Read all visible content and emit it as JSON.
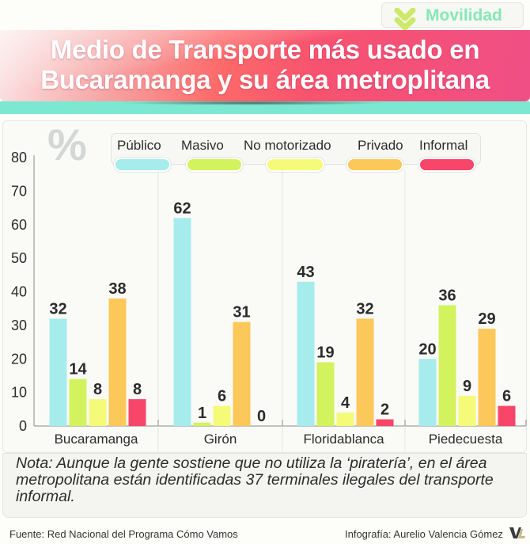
{
  "badge": {
    "label": "Movilidad",
    "icon": "double-chevron-down-icon",
    "accent": "#86e8b8",
    "chevron_color": "#cde86a"
  },
  "header": {
    "title_line1": "Medio de Transporte más usado en",
    "title_line2": "Bucaramanga y su área metroplitana"
  },
  "unit_symbol": "%",
  "note": "Nota: Aunque la gente sostiene que no utiliza la ‘piratería’, en el área metropolitana están identificadas 37 terminales ilegales del transporte informal.",
  "footer": {
    "source": "Fuente: Red Nacional del Programa Cómo Vamos",
    "credit": "Infografía: Aurelio Valencia Gómez",
    "logo": "vl-logo-icon"
  },
  "chart_data": {
    "type": "bar",
    "title": "Medio de Transporte más usado en Bucaramanga y su área metroplitana",
    "xlabel": "",
    "ylabel": "%",
    "ylim": [
      0,
      80
    ],
    "yticks": [
      0,
      10,
      20,
      30,
      40,
      50,
      60,
      70,
      80
    ],
    "grid": false,
    "legend_position": "top",
    "categories": [
      "Bucaramanga",
      "Girón",
      "Floridablanca",
      "Piedecuesta"
    ],
    "series": [
      {
        "name": "Público",
        "color": "#a6ecec",
        "values": [
          32,
          62,
          43,
          20
        ]
      },
      {
        "name": "Masivo",
        "color": "#d2f25e",
        "values": [
          14,
          1,
          19,
          36
        ]
      },
      {
        "name": "No motorizado",
        "color": "#f5fa78",
        "values": [
          8,
          6,
          4,
          9
        ]
      },
      {
        "name": "Privado",
        "color": "#fdc85a",
        "values": [
          38,
          31,
          32,
          29
        ]
      },
      {
        "name": "Informal",
        "color": "#f8456a",
        "values": [
          8,
          0,
          2,
          6
        ]
      }
    ]
  }
}
